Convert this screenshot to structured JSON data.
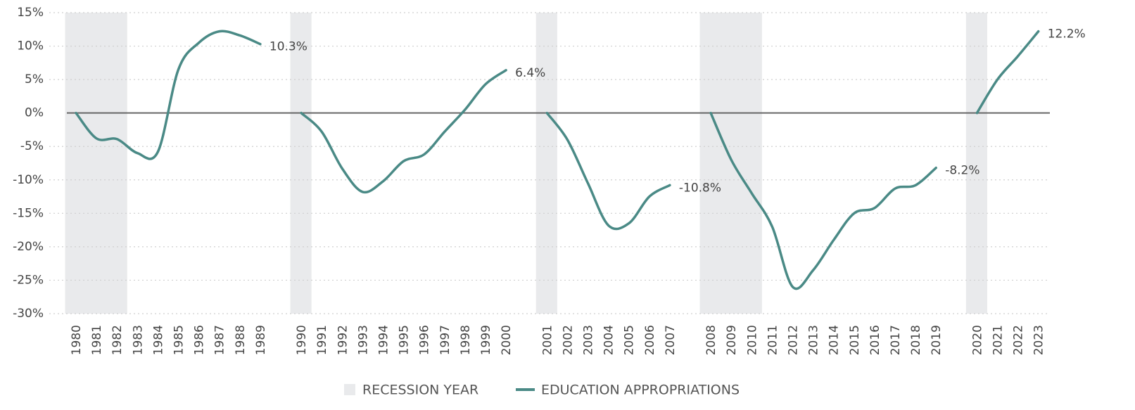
{
  "chart_data": {
    "type": "line",
    "categories": [
      "1980",
      "1981",
      "1982",
      "1983",
      "1984",
      "1985",
      "1986",
      "1987",
      "1988",
      "1989",
      null,
      "1990",
      "1991",
      "1992",
      "1993",
      "1994",
      "1995",
      "1996",
      "1997",
      "1998",
      "1999",
      "2000",
      null,
      "2001",
      "2002",
      "2003",
      "2004",
      "2005",
      "2006",
      "2007",
      null,
      "2008",
      "2009",
      "2010",
      "2011",
      "2012",
      "2013",
      "2014",
      "2015",
      "2016",
      "2017",
      "2018",
      "2019",
      null,
      "2020",
      "2021",
      "2022",
      "2023"
    ],
    "recession": [
      true,
      true,
      true,
      false,
      false,
      false,
      false,
      false,
      false,
      false,
      false,
      true,
      false,
      false,
      false,
      false,
      false,
      false,
      false,
      false,
      false,
      false,
      false,
      true,
      false,
      false,
      false,
      false,
      false,
      false,
      false,
      true,
      true,
      true,
      false,
      false,
      false,
      false,
      false,
      false,
      false,
      false,
      false,
      false,
      true,
      false,
      false,
      false
    ],
    "recession_name": "RECESSION YEAR",
    "recession_color": "#e9eaec",
    "series": [
      {
        "name": "EDUCATION APPROPRIATIONS",
        "color": "#4a8a86",
        "values": [
          0,
          -3.8,
          -3.9,
          -6.0,
          -5.8,
          6.5,
          10.5,
          12.2,
          11.6,
          10.3,
          null,
          0,
          -2.8,
          -8.3,
          -11.8,
          -10.2,
          -7.2,
          -6.2,
          -2.8,
          0.5,
          4.3,
          6.4,
          null,
          0,
          -4.0,
          -10.5,
          -16.8,
          -16.5,
          -12.5,
          -10.8,
          null,
          0,
          -7.0,
          -12.0,
          -17.0,
          -26.0,
          -23.5,
          -19.0,
          -15.0,
          -14.2,
          -11.3,
          -10.8,
          -8.2,
          null,
          0,
          5.0,
          8.5,
          12.2
        ],
        "value_labels": [
          null,
          null,
          null,
          null,
          null,
          null,
          null,
          null,
          null,
          "10.3%",
          null,
          null,
          null,
          null,
          null,
          null,
          null,
          null,
          null,
          null,
          null,
          "6.4%",
          null,
          null,
          null,
          null,
          null,
          null,
          null,
          "-10.8%",
          null,
          null,
          null,
          null,
          null,
          null,
          null,
          null,
          null,
          null,
          null,
          null,
          "-8.2%",
          null,
          null,
          null,
          null,
          "12.2%"
        ]
      }
    ],
    "ylim": [
      -30,
      15
    ],
    "yticks": [
      {
        "value": -30,
        "label": "-30%"
      },
      {
        "value": -25,
        "label": "-25%"
      },
      {
        "value": -20,
        "label": "-20%"
      },
      {
        "value": -15,
        "label": "-15%"
      },
      {
        "value": -10,
        "label": "-10%"
      },
      {
        "value": -5,
        "label": "-5%"
      },
      {
        "value": 0,
        "label": "0%"
      },
      {
        "value": 5,
        "label": "5%"
      },
      {
        "value": 10,
        "label": "10%"
      },
      {
        "value": 15,
        "label": "15%"
      }
    ],
    "grid": true
  }
}
